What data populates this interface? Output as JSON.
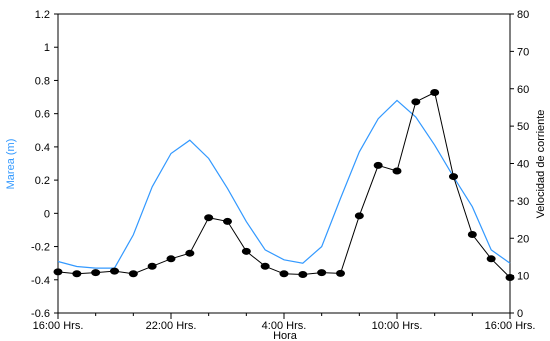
{
  "chart_data": {
    "type": "line",
    "xlabel": "Hora",
    "ylabel_left": "Marea (m)",
    "ylabel_right": "Velocidad de corriente",
    "x_tick_labels": [
      "16:00 Hrs.",
      "22:00 Hrs.",
      "4:00 Hrs.",
      "10:00 Hrs.",
      "16:00 Hrs."
    ],
    "x_tick_hours": [
      0,
      6,
      12,
      18,
      24
    ],
    "xlim": [
      0,
      24
    ],
    "ylim_left": [
      -0.6,
      1.2
    ],
    "y_ticks_left": [
      -0.6,
      -0.4,
      -0.2,
      0,
      0.2,
      0.4,
      0.6,
      0.8,
      1,
      1.2
    ],
    "y_tick_labels_left": [
      "-0.6",
      "-0.4",
      "-0.2",
      "0",
      "0.2",
      "0.4",
      "0.6",
      "0.8",
      "1",
      "1.2"
    ],
    "ylim_right": [
      0,
      80
    ],
    "y_ticks_right": [
      0,
      10,
      20,
      30,
      40,
      50,
      60,
      70,
      80
    ],
    "y_tick_labels_right": [
      "0",
      "10",
      "20",
      "30",
      "40",
      "50",
      "60",
      "70",
      "80"
    ],
    "grid": false,
    "series": [
      {
        "axis": "left",
        "color": "#3399ff",
        "marker": "none",
        "x": [
          0,
          1,
          2,
          3,
          4,
          5,
          6,
          7,
          8,
          9,
          10,
          11,
          12,
          13,
          14,
          15,
          16,
          17,
          18,
          19,
          20,
          21,
          22,
          23,
          24
        ],
        "y": [
          -0.29,
          -0.32,
          -0.33,
          -0.33,
          -0.13,
          0.16,
          0.36,
          0.44,
          0.33,
          0.15,
          -0.05,
          -0.22,
          -0.28,
          -0.3,
          -0.2,
          0.09,
          0.37,
          0.57,
          0.68,
          0.58,
          0.41,
          0.22,
          0.04,
          -0.22,
          -0.3
        ]
      },
      {
        "axis": "right",
        "color": "#000000",
        "marker": "circle",
        "x": [
          0,
          1,
          2,
          3,
          4,
          5,
          6,
          7,
          8,
          9,
          10,
          11,
          12,
          13,
          14,
          15,
          16,
          17,
          18,
          19,
          20,
          21,
          22,
          23,
          24
        ],
        "y": [
          11,
          10.5,
          10.8,
          11.2,
          10.5,
          12.5,
          14.5,
          16,
          25.5,
          24.5,
          16.5,
          12.5,
          10.5,
          10.3,
          10.8,
          10.6,
          26,
          39.5,
          38,
          56.5,
          59,
          36.5,
          21,
          14.5,
          9.5
        ]
      }
    ]
  }
}
